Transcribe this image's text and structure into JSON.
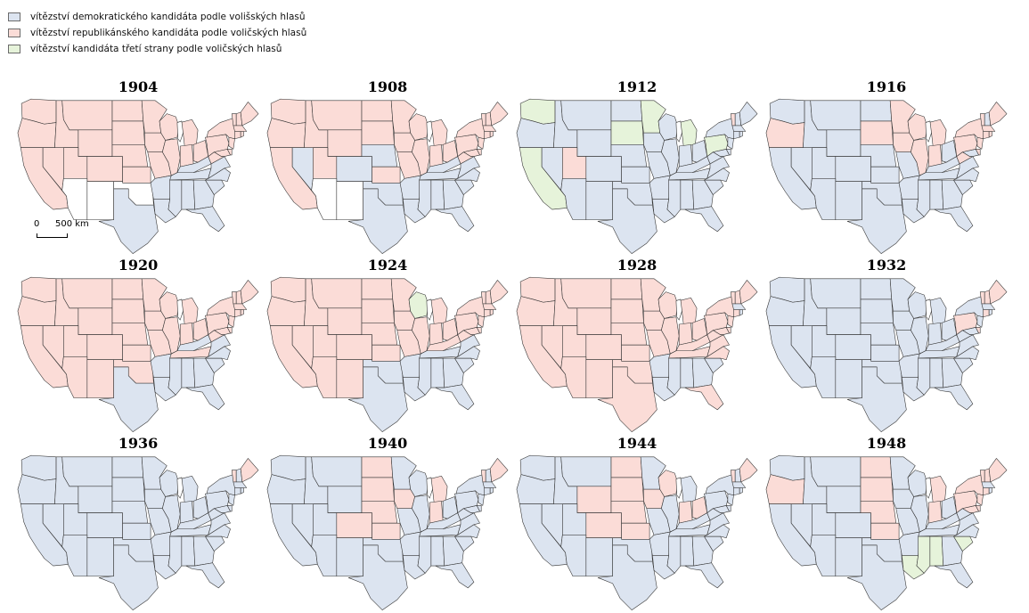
{
  "legend": [
    {
      "key": "D",
      "label": "vítězství demokratického kandidáta podle volišských hlasů"
    },
    {
      "key": "R",
      "label": "vítězství republikánského kandidáta podle voličských hlasů"
    },
    {
      "key": "T",
      "label": "vítězství kandidáta třetí strany podle voličských hlasů"
    }
  ],
  "colors": {
    "D": "#dce4f0",
    "R": "#fbdcd7",
    "T": "#e6f3da",
    "N": "#ffffff"
  },
  "scale": {
    "zero": "0",
    "distance": "500 km"
  },
  "maps": [
    {
      "year": "1904",
      "results": {
        "WA": "R",
        "OR": "R",
        "CA": "R",
        "NV": "R",
        "ID": "R",
        "MT": "R",
        "WY": "R",
        "UT": "R",
        "CO": "R",
        "AZ": "N",
        "NM": "N",
        "ND": "R",
        "SD": "R",
        "NE": "R",
        "KS": "R",
        "OK": "N",
        "TX": "D",
        "MN": "R",
        "IA": "R",
        "MO": "R",
        "AR": "D",
        "LA": "D",
        "WI": "R",
        "IL": "R",
        "MI": "R",
        "IN": "R",
        "OH": "R",
        "KY": "D",
        "TN": "D",
        "MS": "D",
        "AL": "D",
        "GA": "D",
        "FL": "D",
        "SC": "D",
        "NC": "D",
        "VA": "D",
        "WV": "R",
        "MD": "R",
        "DE": "R",
        "PA": "R",
        "NJ": "R",
        "NY": "R",
        "CT": "R",
        "RI": "R",
        "MA": "R",
        "VT": "R",
        "NH": "R",
        "ME": "R"
      }
    },
    {
      "year": "1908",
      "results": {
        "WA": "R",
        "OR": "R",
        "CA": "R",
        "NV": "D",
        "ID": "R",
        "MT": "R",
        "WY": "R",
        "UT": "R",
        "CO": "D",
        "AZ": "N",
        "NM": "N",
        "ND": "R",
        "SD": "R",
        "NE": "D",
        "KS": "R",
        "OK": "D",
        "TX": "D",
        "MN": "R",
        "IA": "R",
        "MO": "R",
        "AR": "D",
        "LA": "D",
        "WI": "R",
        "IL": "R",
        "MI": "R",
        "IN": "R",
        "OH": "R",
        "KY": "D",
        "TN": "D",
        "MS": "D",
        "AL": "D",
        "GA": "D",
        "FL": "D",
        "SC": "D",
        "NC": "D",
        "VA": "D",
        "WV": "R",
        "MD": "R",
        "DE": "R",
        "PA": "R",
        "NJ": "R",
        "NY": "R",
        "CT": "R",
        "RI": "R",
        "MA": "R",
        "VT": "R",
        "NH": "R",
        "ME": "R"
      }
    },
    {
      "year": "1912",
      "results": {
        "WA": "T",
        "OR": "D",
        "CA": "T",
        "NV": "D",
        "ID": "D",
        "MT": "D",
        "WY": "D",
        "UT": "R",
        "CO": "D",
        "AZ": "D",
        "NM": "D",
        "ND": "D",
        "SD": "T",
        "NE": "D",
        "KS": "D",
        "OK": "D",
        "TX": "D",
        "MN": "T",
        "IA": "D",
        "MO": "D",
        "AR": "D",
        "LA": "D",
        "WI": "D",
        "IL": "D",
        "MI": "T",
        "IN": "D",
        "OH": "D",
        "KY": "D",
        "TN": "D",
        "MS": "D",
        "AL": "D",
        "GA": "D",
        "FL": "D",
        "SC": "D",
        "NC": "D",
        "VA": "D",
        "WV": "D",
        "MD": "D",
        "DE": "D",
        "PA": "T",
        "NJ": "D",
        "NY": "D",
        "CT": "D",
        "RI": "D",
        "MA": "D",
        "VT": "R",
        "NH": "D",
        "ME": "D"
      }
    },
    {
      "year": "1916",
      "results": {
        "WA": "D",
        "OR": "R",
        "CA": "D",
        "NV": "D",
        "ID": "D",
        "MT": "D",
        "WY": "D",
        "UT": "D",
        "CO": "D",
        "AZ": "D",
        "NM": "D",
        "ND": "D",
        "SD": "R",
        "NE": "D",
        "KS": "D",
        "OK": "D",
        "TX": "D",
        "MN": "R",
        "IA": "R",
        "MO": "D",
        "AR": "D",
        "LA": "D",
        "WI": "R",
        "IL": "R",
        "MI": "R",
        "IN": "R",
        "OH": "D",
        "KY": "D",
        "TN": "D",
        "MS": "D",
        "AL": "D",
        "GA": "D",
        "FL": "D",
        "SC": "D",
        "NC": "D",
        "VA": "D",
        "WV": "R",
        "MD": "D",
        "DE": "R",
        "PA": "R",
        "NJ": "R",
        "NY": "R",
        "CT": "R",
        "RI": "R",
        "MA": "R",
        "VT": "R",
        "NH": "D",
        "ME": "R"
      }
    },
    {
      "year": "1920",
      "results": {
        "WA": "R",
        "OR": "R",
        "CA": "R",
        "NV": "R",
        "ID": "R",
        "MT": "R",
        "WY": "R",
        "UT": "R",
        "CO": "R",
        "AZ": "R",
        "NM": "R",
        "ND": "R",
        "SD": "R",
        "NE": "R",
        "KS": "R",
        "OK": "R",
        "TX": "D",
        "MN": "R",
        "IA": "R",
        "MO": "R",
        "AR": "D",
        "LA": "D",
        "WI": "R",
        "IL": "R",
        "MI": "R",
        "IN": "R",
        "OH": "R",
        "KY": "D",
        "TN": "R",
        "MS": "D",
        "AL": "D",
        "GA": "D",
        "FL": "D",
        "SC": "D",
        "NC": "D",
        "VA": "D",
        "WV": "R",
        "MD": "R",
        "DE": "R",
        "PA": "R",
        "NJ": "R",
        "NY": "R",
        "CT": "R",
        "RI": "R",
        "MA": "R",
        "VT": "R",
        "NH": "R",
        "ME": "R"
      }
    },
    {
      "year": "1924",
      "results": {
        "WA": "R",
        "OR": "R",
        "CA": "R",
        "NV": "R",
        "ID": "R",
        "MT": "R",
        "WY": "R",
        "UT": "R",
        "CO": "R",
        "AZ": "R",
        "NM": "R",
        "ND": "R",
        "SD": "R",
        "NE": "R",
        "KS": "R",
        "OK": "D",
        "TX": "D",
        "MN": "R",
        "IA": "R",
        "MO": "R",
        "AR": "D",
        "LA": "D",
        "WI": "T",
        "IL": "R",
        "MI": "R",
        "IN": "R",
        "OH": "R",
        "KY": "R",
        "TN": "D",
        "MS": "D",
        "AL": "D",
        "GA": "D",
        "FL": "D",
        "SC": "D",
        "NC": "D",
        "VA": "D",
        "WV": "R",
        "MD": "R",
        "DE": "R",
        "PA": "R",
        "NJ": "R",
        "NY": "R",
        "CT": "R",
        "RI": "R",
        "MA": "R",
        "VT": "R",
        "NH": "R",
        "ME": "R"
      }
    },
    {
      "year": "1928",
      "results": {
        "WA": "R",
        "OR": "R",
        "CA": "R",
        "NV": "R",
        "ID": "R",
        "MT": "R",
        "WY": "R",
        "UT": "R",
        "CO": "R",
        "AZ": "R",
        "NM": "R",
        "ND": "R",
        "SD": "R",
        "NE": "R",
        "KS": "R",
        "OK": "R",
        "TX": "R",
        "MN": "R",
        "IA": "R",
        "MO": "R",
        "AR": "D",
        "LA": "D",
        "WI": "R",
        "IL": "R",
        "MI": "R",
        "IN": "R",
        "OH": "R",
        "KY": "R",
        "TN": "R",
        "MS": "D",
        "AL": "D",
        "GA": "D",
        "FL": "R",
        "SC": "D",
        "NC": "R",
        "VA": "R",
        "WV": "R",
        "MD": "R",
        "DE": "R",
        "PA": "R",
        "NJ": "R",
        "NY": "R",
        "CT": "R",
        "RI": "D",
        "MA": "D",
        "VT": "R",
        "NH": "R",
        "ME": "R"
      }
    },
    {
      "year": "1932",
      "results": {
        "WA": "D",
        "OR": "D",
        "CA": "D",
        "NV": "D",
        "ID": "D",
        "MT": "D",
        "WY": "D",
        "UT": "D",
        "CO": "D",
        "AZ": "D",
        "NM": "D",
        "ND": "D",
        "SD": "D",
        "NE": "D",
        "KS": "D",
        "OK": "D",
        "TX": "D",
        "MN": "D",
        "IA": "D",
        "MO": "D",
        "AR": "D",
        "LA": "D",
        "WI": "D",
        "IL": "D",
        "MI": "D",
        "IN": "D",
        "OH": "D",
        "KY": "D",
        "TN": "D",
        "MS": "D",
        "AL": "D",
        "GA": "D",
        "FL": "D",
        "SC": "D",
        "NC": "D",
        "VA": "D",
        "WV": "D",
        "MD": "D",
        "DE": "R",
        "PA": "R",
        "NJ": "D",
        "NY": "D",
        "CT": "R",
        "RI": "D",
        "MA": "D",
        "VT": "R",
        "NH": "R",
        "ME": "R"
      }
    },
    {
      "year": "1936",
      "results": {
        "WA": "D",
        "OR": "D",
        "CA": "D",
        "NV": "D",
        "ID": "D",
        "MT": "D",
        "WY": "D",
        "UT": "D",
        "CO": "D",
        "AZ": "D",
        "NM": "D",
        "ND": "D",
        "SD": "D",
        "NE": "D",
        "KS": "D",
        "OK": "D",
        "TX": "D",
        "MN": "D",
        "IA": "D",
        "MO": "D",
        "AR": "D",
        "LA": "D",
        "WI": "D",
        "IL": "D",
        "MI": "D",
        "IN": "D",
        "OH": "D",
        "KY": "D",
        "TN": "D",
        "MS": "D",
        "AL": "D",
        "GA": "D",
        "FL": "D",
        "SC": "D",
        "NC": "D",
        "VA": "D",
        "WV": "D",
        "MD": "D",
        "DE": "D",
        "PA": "D",
        "NJ": "D",
        "NY": "D",
        "CT": "D",
        "RI": "D",
        "MA": "D",
        "VT": "R",
        "NH": "D",
        "ME": "R"
      }
    },
    {
      "year": "1940",
      "results": {
        "WA": "D",
        "OR": "D",
        "CA": "D",
        "NV": "D",
        "ID": "D",
        "MT": "D",
        "WY": "D",
        "UT": "D",
        "CO": "R",
        "AZ": "D",
        "NM": "D",
        "ND": "R",
        "SD": "R",
        "NE": "R",
        "KS": "R",
        "OK": "D",
        "TX": "D",
        "MN": "D",
        "IA": "R",
        "MO": "D",
        "AR": "D",
        "LA": "D",
        "WI": "D",
        "IL": "D",
        "MI": "R",
        "IN": "R",
        "OH": "D",
        "KY": "D",
        "TN": "D",
        "MS": "D",
        "AL": "D",
        "GA": "D",
        "FL": "D",
        "SC": "D",
        "NC": "D",
        "VA": "D",
        "WV": "D",
        "MD": "D",
        "DE": "D",
        "PA": "D",
        "NJ": "D",
        "NY": "D",
        "CT": "D",
        "RI": "D",
        "MA": "D",
        "VT": "R",
        "NH": "D",
        "ME": "R"
      }
    },
    {
      "year": "1944",
      "results": {
        "WA": "D",
        "OR": "D",
        "CA": "D",
        "NV": "D",
        "ID": "D",
        "MT": "D",
        "WY": "R",
        "UT": "D",
        "CO": "R",
        "AZ": "D",
        "NM": "D",
        "ND": "R",
        "SD": "R",
        "NE": "R",
        "KS": "R",
        "OK": "D",
        "TX": "D",
        "MN": "D",
        "IA": "R",
        "MO": "D",
        "AR": "D",
        "LA": "D",
        "WI": "R",
        "IL": "D",
        "MI": "D",
        "IN": "R",
        "OH": "R",
        "KY": "D",
        "TN": "D",
        "MS": "D",
        "AL": "D",
        "GA": "D",
        "FL": "D",
        "SC": "D",
        "NC": "D",
        "VA": "D",
        "WV": "D",
        "MD": "D",
        "DE": "D",
        "PA": "D",
        "NJ": "D",
        "NY": "D",
        "CT": "D",
        "RI": "D",
        "MA": "D",
        "VT": "R",
        "NH": "D",
        "ME": "R"
      }
    },
    {
      "year": "1948",
      "results": {
        "WA": "D",
        "OR": "R",
        "CA": "D",
        "NV": "D",
        "ID": "D",
        "MT": "D",
        "WY": "D",
        "UT": "D",
        "CO": "D",
        "AZ": "D",
        "NM": "D",
        "ND": "R",
        "SD": "R",
        "NE": "R",
        "KS": "R",
        "OK": "D",
        "TX": "D",
        "MN": "D",
        "IA": "D",
        "MO": "D",
        "AR": "D",
        "LA": "T",
        "WI": "D",
        "IL": "D",
        "MI": "R",
        "IN": "R",
        "OH": "D",
        "KY": "D",
        "TN": "D",
        "MS": "T",
        "AL": "T",
        "GA": "D",
        "FL": "D",
        "SC": "T",
        "NC": "D",
        "VA": "D",
        "WV": "D",
        "MD": "R",
        "DE": "R",
        "PA": "R",
        "NJ": "R",
        "NY": "R",
        "CT": "R",
        "RI": "D",
        "MA": "D",
        "VT": "R",
        "NH": "R",
        "ME": "R"
      }
    }
  ]
}
